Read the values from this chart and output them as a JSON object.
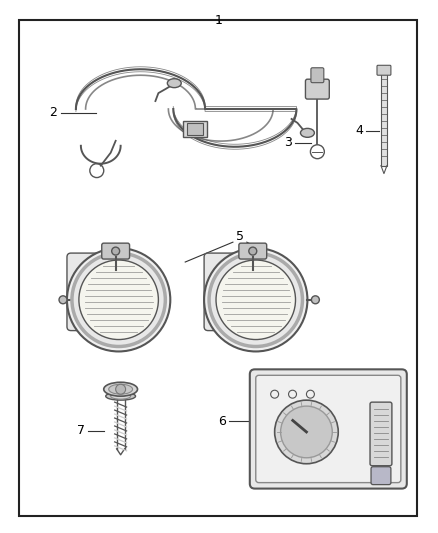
{
  "background_color": "#ffffff",
  "border_color": "#333333",
  "line_color": "#555555",
  "label_color": "#000000",
  "fig_width": 4.38,
  "fig_height": 5.33,
  "dpi": 100
}
